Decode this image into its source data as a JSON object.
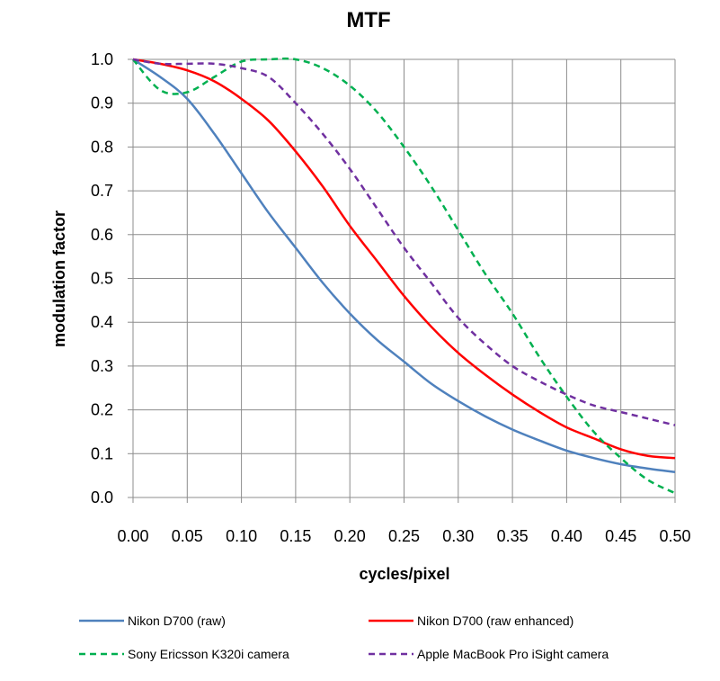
{
  "chart_data": {
    "type": "line",
    "title": "MTF",
    "xlabel": "cycles/pixel",
    "ylabel": "modulation factor",
    "xlim": [
      0,
      0.5
    ],
    "ylim": [
      0,
      1.0
    ],
    "grid": true,
    "legend_position": "bottom",
    "x_ticks": [
      "0.00",
      "0.05",
      "0.10",
      "0.15",
      "0.20",
      "0.25",
      "0.30",
      "0.35",
      "0.40",
      "0.45",
      "0.50"
    ],
    "y_ticks": [
      "0.0",
      "0.1",
      "0.2",
      "0.3",
      "0.4",
      "0.5",
      "0.6",
      "0.7",
      "0.8",
      "0.9",
      "1.0"
    ],
    "x": [
      0,
      0.025,
      0.05,
      0.075,
      0.1,
      0.125,
      0.15,
      0.175,
      0.2,
      0.225,
      0.25,
      0.275,
      0.3,
      0.325,
      0.35,
      0.375,
      0.4,
      0.425,
      0.45,
      0.475,
      0.5
    ],
    "series": [
      {
        "name": "Nikon D700 (raw)",
        "color": "#4f81bd",
        "dashed": false,
        "values": [
          1.0,
          0.96,
          0.91,
          0.83,
          0.74,
          0.65,
          0.57,
          0.49,
          0.42,
          0.36,
          0.31,
          0.26,
          0.22,
          0.185,
          0.155,
          0.13,
          0.107,
          0.09,
          0.076,
          0.066,
          0.058
        ]
      },
      {
        "name": "Nikon D700 (raw enhanced)",
        "color": "#ff0000",
        "dashed": false,
        "values": [
          1.0,
          0.99,
          0.975,
          0.95,
          0.91,
          0.86,
          0.79,
          0.71,
          0.62,
          0.54,
          0.46,
          0.39,
          0.33,
          0.28,
          0.235,
          0.195,
          0.16,
          0.135,
          0.11,
          0.095,
          0.09
        ]
      },
      {
        "name": "Sony Ericsson K320i camera",
        "color": "#00b050",
        "dashed": true,
        "values": [
          1.0,
          0.93,
          0.925,
          0.96,
          0.995,
          1.0,
          1.0,
          0.98,
          0.94,
          0.88,
          0.8,
          0.71,
          0.61,
          0.51,
          0.42,
          0.32,
          0.23,
          0.15,
          0.09,
          0.04,
          0.01
        ]
      },
      {
        "name": "Apple MacBook Pro iSight camera",
        "color": "#7030a0",
        "dashed": true,
        "values": [
          1.0,
          0.99,
          0.99,
          0.99,
          0.98,
          0.96,
          0.9,
          0.83,
          0.75,
          0.66,
          0.57,
          0.49,
          0.41,
          0.35,
          0.3,
          0.265,
          0.235,
          0.21,
          0.195,
          0.18,
          0.165
        ]
      }
    ]
  }
}
